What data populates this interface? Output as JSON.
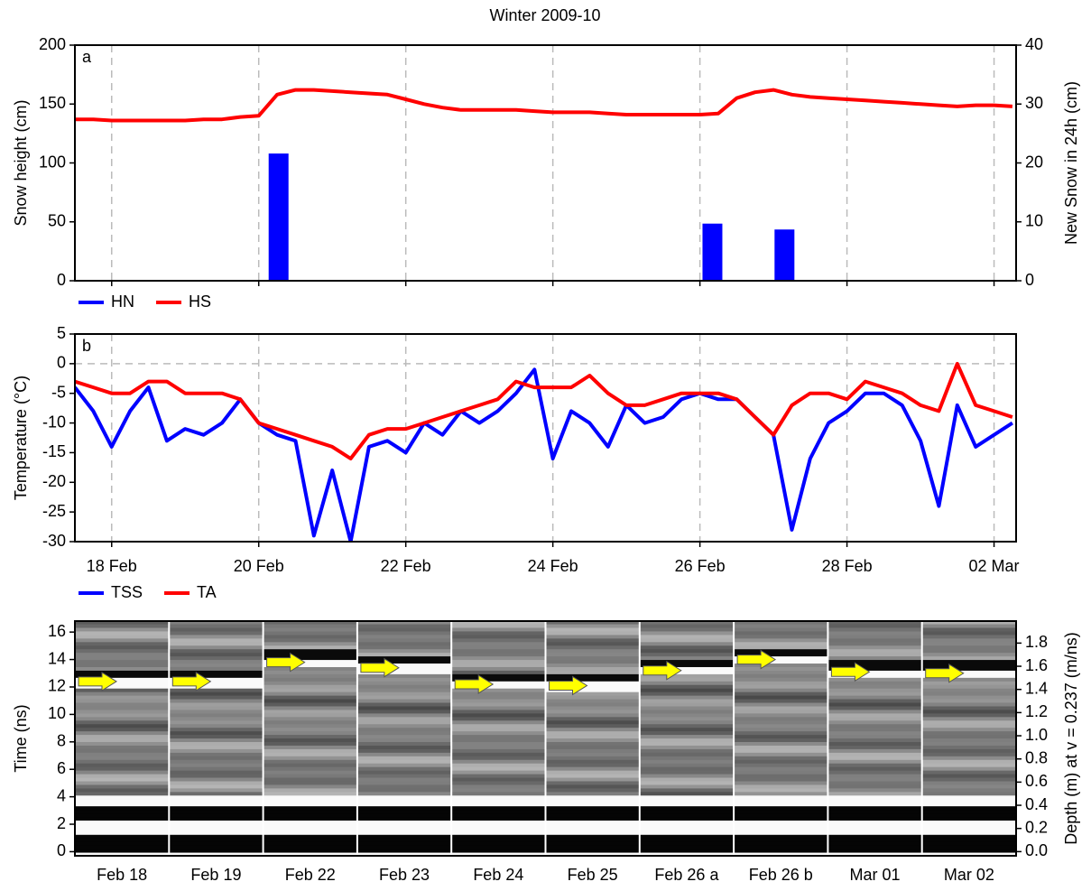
{
  "chart_data": [
    {
      "type": "combo",
      "title": "Winter 2009-10",
      "panel_label": "a",
      "ylabel": "Snow height (cm)",
      "y2label": "New Snow in 24h (cm)",
      "xlim": [
        17.5,
        30.3
      ],
      "ylim": [
        0,
        200
      ],
      "yticks": [
        0,
        50,
        100,
        150,
        200
      ],
      "y2lim": [
        0,
        40
      ],
      "y2ticks": [
        0,
        10,
        20,
        30,
        40
      ],
      "grid": true,
      "series": [
        {
          "name": "HN",
          "type": "bar",
          "axis": "y2",
          "color": "#0000ff",
          "x": [
            20.27,
            26.17,
            27.15
          ],
          "values": [
            21.6,
            9.7,
            8.7
          ]
        },
        {
          "name": "HS",
          "type": "line",
          "color": "#ff0000",
          "x": [
            17.5,
            17.75,
            18,
            18.25,
            18.5,
            18.75,
            19,
            19.25,
            19.5,
            19.75,
            20,
            20.25,
            20.5,
            20.75,
            21,
            21.25,
            21.5,
            21.75,
            22,
            22.25,
            22.5,
            22.75,
            23,
            23.25,
            23.5,
            23.75,
            24,
            24.25,
            24.5,
            24.75,
            25,
            25.25,
            25.5,
            25.75,
            26,
            26.25,
            26.5,
            26.75,
            27,
            27.25,
            27.5,
            27.75,
            28,
            28.25,
            28.5,
            28.75,
            29,
            29.25,
            29.5,
            29.75,
            30,
            30.25
          ],
          "values": [
            137,
            137,
            136,
            136,
            136,
            136,
            136,
            137,
            137,
            139,
            140,
            158,
            162,
            162,
            161,
            160,
            159,
            158,
            154,
            150,
            147,
            145,
            145,
            145,
            145,
            144,
            143,
            143,
            143,
            142,
            141,
            141,
            141,
            141,
            141,
            142,
            155,
            160,
            162,
            158,
            156,
            155,
            154,
            153,
            152,
            151,
            150,
            149,
            148,
            149,
            149,
            148
          ]
        }
      ]
    },
    {
      "type": "line",
      "panel_label": "b",
      "ylabel": "Temperature (°C)",
      "xlim": [
        17.5,
        30.3
      ],
      "xticks": [
        {
          "value": 18,
          "label": "18 Feb"
        },
        {
          "value": 20,
          "label": "20 Feb"
        },
        {
          "value": 22,
          "label": "22 Feb"
        },
        {
          "value": 24,
          "label": "24 Feb"
        },
        {
          "value": 26,
          "label": "26 Feb"
        },
        {
          "value": 28,
          "label": "28 Feb"
        },
        {
          "value": 30,
          "label": "02 Mar"
        }
      ],
      "ylim": [
        -30,
        5
      ],
      "yticks": [
        -30,
        -25,
        -20,
        -15,
        -10,
        -5,
        0,
        5
      ],
      "grid": true,
      "zero_line": true,
      "series": [
        {
          "name": "TSS",
          "color": "#0000ff",
          "x": [
            17.5,
            17.75,
            18,
            18.25,
            18.5,
            18.75,
            19,
            19.25,
            19.5,
            19.75,
            20,
            20.25,
            20.5,
            20.75,
            21,
            21.25,
            21.5,
            21.75,
            22,
            22.25,
            22.5,
            22.75,
            23,
            23.25,
            23.5,
            23.75,
            24,
            24.25,
            24.5,
            24.75,
            25,
            25.25,
            25.5,
            25.75,
            26,
            26.25,
            26.5,
            26.75,
            27,
            27.25,
            27.5,
            27.75,
            28,
            28.25,
            28.5,
            28.75,
            29,
            29.25,
            29.5,
            29.75,
            30,
            30.25
          ],
          "values": [
            -4,
            -8,
            -14,
            -8,
            -4,
            -13,
            -11,
            -12,
            -10,
            -6,
            -10,
            -12,
            -13,
            -29,
            -18,
            -30,
            -14,
            -13,
            -15,
            -10,
            -12,
            -8,
            -10,
            -8,
            -5,
            -1,
            -16,
            -8,
            -10,
            -14,
            -7,
            -10,
            -9,
            -6,
            -5,
            -6,
            -6,
            -9,
            -12,
            -28,
            -16,
            -10,
            -8,
            -5,
            -5,
            -7,
            -13,
            -24,
            -7,
            -14,
            -12,
            -10
          ]
        },
        {
          "name": "TA",
          "color": "#ff0000",
          "x": [
            17.5,
            17.75,
            18,
            18.25,
            18.5,
            18.75,
            19,
            19.25,
            19.5,
            19.75,
            20,
            20.25,
            20.5,
            20.75,
            21,
            21.25,
            21.5,
            21.75,
            22,
            22.25,
            22.5,
            22.75,
            23,
            23.25,
            23.5,
            23.75,
            24,
            24.25,
            24.5,
            24.75,
            25,
            25.25,
            25.5,
            25.75,
            26,
            26.25,
            26.5,
            26.75,
            27,
            27.25,
            27.5,
            27.75,
            28,
            28.25,
            28.5,
            28.75,
            29,
            29.25,
            29.5,
            29.75,
            30,
            30.25
          ],
          "values": [
            -3,
            -4,
            -5,
            -5,
            -3,
            -3,
            -5,
            -5,
            -5,
            -6,
            -10,
            -11,
            -12,
            -13,
            -14,
            -16,
            -12,
            -11,
            -11,
            -10,
            -9,
            -8,
            -7,
            -6,
            -3,
            -4,
            -4,
            -4,
            -2,
            -5,
            -7,
            -7,
            -6,
            -5,
            -5,
            -5,
            -6,
            -9,
            -12,
            -7,
            -5,
            -5,
            -6,
            -3,
            -4,
            -5,
            -7,
            -8,
            0,
            -7,
            -8,
            -9
          ]
        }
      ]
    },
    {
      "type": "radargram",
      "ylabel": "Time (ns)",
      "y2label": "Depth (m) at v = 0.237 (m/ns)",
      "categories": [
        "Feb 18",
        "Feb 19",
        "Feb 22",
        "Feb 23",
        "Feb 24",
        "Feb 25",
        "Feb 26 a",
        "Feb 26 b",
        "Mar 01",
        "Mar 02"
      ],
      "ylim": [
        -0.3,
        16.8
      ],
      "yticks": [
        0,
        2,
        4,
        6,
        8,
        10,
        12,
        14,
        16
      ],
      "y2lim": [
        -0.036,
        1.99
      ],
      "y2ticks": [
        {
          "value": 0,
          "label": "0.0"
        },
        0.2,
        0.4,
        0.6,
        0.8,
        {
          "value": 1,
          "label": "1.0"
        },
        1.2,
        1.4,
        1.6,
        1.8
      ],
      "arrow_color": "#ffff00",
      "values": [
        12.4,
        12.4,
        13.8,
        13.4,
        12.2,
        12.1,
        13.2,
        14.0,
        13.1,
        13.0
      ]
    }
  ]
}
